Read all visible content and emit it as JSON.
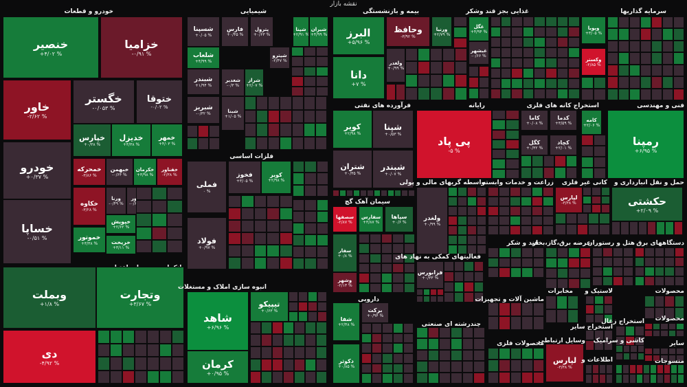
{
  "page_title": "نقشه بازار",
  "sectors": {
    "auto": "خودرو و قطعات",
    "chemical": "شیمیایی",
    "insurance": "بیمه و بازنشستگی",
    "food": "غذایی بجز قند وشکر",
    "investment": "سرمایه گذاریها",
    "oil": "فرآورده های نفتی",
    "computer": "رایانه",
    "mining_metal": "استخراج کانه های فلزی",
    "engineering": "فنی و مهندسی",
    "basic_metals": "فلزات اساسی",
    "cement": "سیمان آهک گچ",
    "brokers": "واسطه گریهای مالی و پولی",
    "agri": "زراعت و خدمات وابسته",
    "nonmetal_mining": "کانی غیر فلزی",
    "transport": "حمل و نقل انبارداری و",
    "banks": "بانکها و موسسات اعتباری",
    "realestate": "انبوه سازی املاک و مستغلات",
    "sugar": "قند و شکر",
    "power": "عرضه برق،گاز،بخار",
    "hotel": "هتل و رستوران",
    "electric": "دستگاههای برق",
    "support": "فعالیتهای کمکی به نهاد های",
    "pharma": "دارویی",
    "tile": "کاشی و سرامیک",
    "machinery": "ماشین آلات و تجهیزات",
    "telecom": "مخابرات",
    "plastics": "لاستیک و",
    "other_mining": "استخراج سایر",
    "coal": "استخراج زغال",
    "multi": "چندرشته ای صنعتی",
    "metal_products": "محصولات فلزی",
    "comm_devices": "وسایل ارتباطی",
    "info": "اطلاعات و",
    "paper": "محصولات",
    "wood": "محصولات",
    "textiles": "منسوجات",
    "other": "سایر",
    "leather": "محصولات"
  },
  "tiles": [
    {
      "name": "خنصیر",
      "pct": "+۴/۰۲ %",
      "c": "g2"
    },
    {
      "name": "خزامیا",
      "pct": "-۰/۹۱ %",
      "c": "r1"
    },
    {
      "name": "خاور",
      "pct": "-۲/۶۲ %",
      "c": "r2"
    },
    {
      "name": "خگستر",
      "pct": "-۰/۰۵۳ %",
      "c": "nn"
    },
    {
      "name": "ختوقا",
      "pct": "-۰/۰۲ %",
      "c": "nn"
    },
    {
      "name": "خپارس",
      "pct": "+۰/۳۸ %",
      "c": "g1"
    },
    {
      "name": "خدیزل",
      "pct": "+۳/۳۸ %",
      "c": "g2"
    },
    {
      "name": "خمهر",
      "pct": "+۴/۰۳ %",
      "c": "g2"
    },
    {
      "name": "خودرو",
      "pct": "+۰/۳۷ %",
      "c": "nn"
    },
    {
      "name": "خمحرکه",
      "pct": "-۳/۸۶ %",
      "c": "r2"
    },
    {
      "name": "خبهمن",
      "pct": "-۰/۶۴ %",
      "c": "nn"
    },
    {
      "name": "خکرمان",
      "pct": "+۳/۹۸ %",
      "c": "g2"
    },
    {
      "name": "خفناور",
      "pct": "-۲/۳۸ %",
      "c": "r2"
    },
    {
      "name": "خساپا",
      "pct": "-۰/۵۱ %",
      "c": "nn"
    },
    {
      "name": "خکاوه",
      "pct": "-۳/۲۸ %",
      "c": "r2"
    },
    {
      "name": "ورنا",
      "pct": "-۰/۴۹ %",
      "c": "nn"
    },
    {
      "name": "ختور",
      "pct": "-۰/۶۱ %",
      "c": "nn"
    },
    {
      "name": "خپویش",
      "pct": "+۲/۶۲ %",
      "c": "g2"
    },
    {
      "name": "خموتور",
      "pct": "+۳/۳۸ %",
      "c": "g2"
    },
    {
      "name": "خریخت",
      "pct": "+۳/۱۱ %",
      "c": "g2"
    },
    {
      "name": "شپنا",
      "pct": "+۲/۹۱ %",
      "c": "g2"
    },
    {
      "name": "شپترو",
      "pct": "-۲/۴۷ %",
      "c": "nn"
    },
    {
      "name": "شغدیر",
      "pct": "-۰/۳ %",
      "c": "nn"
    },
    {
      "name": "فارس",
      "pct": "+۰/۴۵ %",
      "c": "nn"
    },
    {
      "name": "پترول",
      "pct": "+۰/۶۳ %",
      "c": "nn"
    },
    {
      "name": "شلعاب",
      "pct": "+۴/۹۹ %",
      "c": "g2"
    },
    {
      "name": "شیران",
      "pct": "+۴/۹۹ %",
      "c": "g2"
    },
    {
      "name": "شسپنا",
      "pct": "+۰/۰۵ %",
      "c": "nn"
    },
    {
      "name": "شبندر",
      "pct": "+۱/۹۴ %",
      "c": "nn"
    },
    {
      "name": "شبریز",
      "pct": "-۰/۳۲ %",
      "c": "nn"
    },
    {
      "name": "شبنا",
      "pct": "+۱/۰۵ %",
      "c": "nn"
    },
    {
      "name": "شراز",
      "pct": "+۲/۰۷ %",
      "c": "g1"
    },
    {
      "name": "وتجارت",
      "pct": "+۳/۶۷ %",
      "c": "g2"
    },
    {
      "name": "وبملت",
      "pct": "+۱/۸ %",
      "c": "g1"
    },
    {
      "name": "دی",
      "pct": "-۴/۹۲ %",
      "c": "r3"
    },
    {
      "name": "شاهد",
      "pct": "+۶/۹۶ %",
      "c": "g3"
    },
    {
      "name": "کرمان",
      "pct": "+۰/۹۵ %",
      "c": "g2"
    },
    {
      "name": "تیپیکو",
      "pct": "+۰/۶۳ %",
      "c": "g2"
    },
    {
      "name": "دانا",
      "pct": "+۷ %",
      "c": "g2"
    },
    {
      "name": "البرز",
      "pct": "+۵/۹۶ %",
      "c": "g2"
    },
    {
      "name": "وحافظ",
      "pct": "-۳/۹۲ %",
      "c": "r1"
    },
    {
      "name": "ورنیا",
      "pct": "+۲/۷۹ %",
      "c": "g1"
    },
    {
      "name": "پی پاد",
      "pct": "-۵ %",
      "c": "r3"
    },
    {
      "name": "رمپنا",
      "pct": "+۶/۹۵ %",
      "c": "g3"
    },
    {
      "name": "فملی",
      "pct": "۰ %",
      "c": "nn"
    },
    {
      "name": "فولاد",
      "pct": "+۰/۹۷ %",
      "c": "nn"
    },
    {
      "name": "فخوز",
      "pct": "+۳/۰۵ %",
      "c": "nn"
    },
    {
      "name": "کویر",
      "pct": "+۲/۹۸ %",
      "c": "g2"
    },
    {
      "name": "شپنا",
      "pct": "+۰/۵۳ %",
      "c": "nn"
    },
    {
      "name": "شتران",
      "pct": "+۰/۳۵ %",
      "c": "nn"
    },
    {
      "name": "شبندر",
      "pct": "+۰/۰۷ %",
      "c": "nn"
    },
    {
      "name": "سصفها",
      "pct": "-۲/۸۷ %",
      "c": "r3"
    },
    {
      "name": "سفارس",
      "pct": "+۳/۸۷ %",
      "c": "g2"
    },
    {
      "name": "سپاها",
      "pct": "+۰/۶ %",
      "c": "g1"
    },
    {
      "name": "سفار",
      "pct": "+۰/۸ %",
      "c": "g1"
    },
    {
      "name": "وشهر",
      "pct": "-۲/۱۳ %",
      "c": "r1"
    },
    {
      "name": "ولغدر",
      "pct": "+۰/۹۹ %",
      "c": "nn"
    },
    {
      "name": "شفا",
      "pct": "+۲/۴۸ %",
      "c": "g2"
    },
    {
      "name": "دکوثر",
      "pct": "+۰/۸۵ %",
      "c": "g2"
    },
    {
      "name": "برکت",
      "pct": "+۰/۹۴ %",
      "c": "nn"
    },
    {
      "name": "حکشتی",
      "pct": "+۲/۰۹ %",
      "c": "g1"
    },
    {
      "name": "کچاد",
      "pct": "+۲/۹۸ %",
      "c": "nn"
    },
    {
      "name": "وپویا",
      "pct": "+۳/۰۵ %",
      "c": "g2"
    },
    {
      "name": "وکستر",
      "pct": "-۲/۸۵ %",
      "c": "r3"
    },
    {
      "name": "وبهمن",
      "pct": "+۲/۳۸ %",
      "c": "nn"
    },
    {
      "name": "فرابورس",
      "pct": "+۰/۳۳ %",
      "c": "nn"
    },
    {
      "name": "لپارس",
      "pct": "-۳/۳۸ %",
      "c": "r2"
    },
    {
      "name": "کامه",
      "pct": "+۲/۰۶ %",
      "c": "g2"
    },
    {
      "name": "غگل",
      "pct": "+۴/۹۴ %",
      "c": "g2"
    },
    {
      "name": "غبشهر",
      "pct": "-۰/۶۶ %",
      "c": "nn"
    },
    {
      "name": "کدما",
      "pct": "+۳/۵۹ %",
      "c": "nn"
    },
    {
      "name": "کاما",
      "pct": "+۰/۰۸ %",
      "c": "nn"
    },
    {
      "name": "کگل",
      "pct": "+۰/۳۲ %",
      "c": "nn"
    },
    {
      "name": "کچاد",
      "pct": "+۲/۰۱ %",
      "c": "nn"
    }
  ]
}
